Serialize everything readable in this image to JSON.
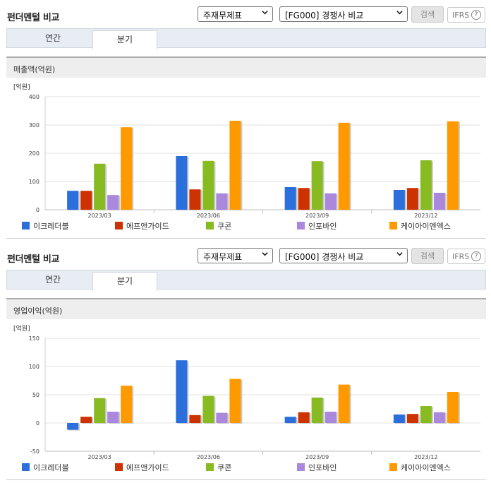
{
  "panels": [
    {
      "title": "펀더멘털 비교",
      "select1": "주재무제표",
      "select2": "[FG000] 경쟁사 비교",
      "search_label": "검색",
      "ifrs_label": "IFRS",
      "ifrs_help": "?",
      "tabs": [
        "연간",
        "분기"
      ],
      "active_tab": "분기",
      "chart_title": "매출액(억원)"
    },
    {
      "title": "펀더멘털 비교",
      "select1": "주재무제표",
      "select2": "[FG000] 경쟁사 비교",
      "search_label": "검색",
      "ifrs_label": "IFRS",
      "ifrs_help": "?",
      "tabs": [
        "연간",
        "분기"
      ],
      "active_tab": "분기",
      "chart_title": "영업이익(억원)"
    }
  ],
  "series_colors": [
    "#2a6fdb",
    "#cc3300",
    "#88bb22",
    "#aa88dd",
    "#ff9900"
  ],
  "chart_data": [
    {
      "type": "bar",
      "unit_label": "[억원]",
      "categories": [
        "2023/03",
        "2023/06",
        "2023/09",
        "2023/12"
      ],
      "yticks": [
        0,
        100,
        200,
        300,
        400
      ],
      "ylim": [
        0,
        400
      ],
      "grid": true,
      "legend": "bottom",
      "series": [
        {
          "name": "이크레더블",
          "values": [
            67,
            190,
            80,
            70
          ]
        },
        {
          "name": "에프앤가이드",
          "values": [
            67,
            72,
            77,
            77
          ]
        },
        {
          "name": "쿠콘",
          "values": [
            163,
            173,
            172,
            175
          ]
        },
        {
          "name": "인포바인",
          "values": [
            52,
            58,
            58,
            60
          ]
        },
        {
          "name": "케이아이엔엑스",
          "values": [
            292,
            315,
            308,
            313
          ]
        }
      ]
    },
    {
      "type": "bar",
      "unit_label": "[억원]",
      "categories": [
        "2023/03",
        "2023/06",
        "2023/09",
        "2023/12"
      ],
      "yticks": [
        -50,
        0,
        50,
        100,
        150
      ],
      "ylim": [
        -50,
        150
      ],
      "grid": true,
      "legend": "bottom",
      "series": [
        {
          "name": "이크레더블",
          "values": [
            -12,
            111,
            11,
            15
          ]
        },
        {
          "name": "에프앤가이드",
          "values": [
            11,
            14,
            19,
            16
          ]
        },
        {
          "name": "쿠콘",
          "values": [
            44,
            48,
            45,
            30
          ]
        },
        {
          "name": "인포바인",
          "values": [
            20,
            18,
            20,
            19
          ]
        },
        {
          "name": "케이아이엔엑스",
          "values": [
            66,
            78,
            68,
            55
          ]
        }
      ]
    }
  ]
}
